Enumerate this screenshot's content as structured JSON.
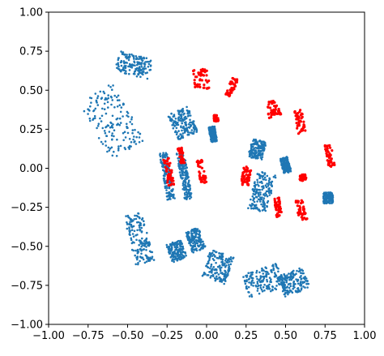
{
  "chart_data": {
    "type": "scatter",
    "title": "",
    "xlabel": "",
    "ylabel": "",
    "xlim": [
      -1.0,
      1.0
    ],
    "ylim": [
      -1.0,
      1.0
    ],
    "grid": false,
    "legend": "none",
    "xticks": [
      {
        "value": -1.0,
        "label": "−1.00"
      },
      {
        "value": -0.75,
        "label": "−0.75"
      },
      {
        "value": -0.5,
        "label": "−0.50"
      },
      {
        "value": -0.25,
        "label": "−0.25"
      },
      {
        "value": 0.0,
        "label": "0.00"
      },
      {
        "value": 0.25,
        "label": "0.25"
      },
      {
        "value": 0.5,
        "label": "0.50"
      },
      {
        "value": 0.75,
        "label": "0.75"
      },
      {
        "value": 1.0,
        "label": "1.00"
      }
    ],
    "yticks": [
      {
        "value": 1.0,
        "label": "1.00"
      },
      {
        "value": 0.75,
        "label": "0.75"
      },
      {
        "value": 0.5,
        "label": "0.50"
      },
      {
        "value": 0.25,
        "label": "0.25"
      },
      {
        "value": 0.0,
        "label": "0.00"
      },
      {
        "value": -0.25,
        "label": "−0.25"
      },
      {
        "value": -0.5,
        "label": "−0.50"
      },
      {
        "value": -0.75,
        "label": "−0.75"
      },
      {
        "value": -1.0,
        "label": "−1.00"
      }
    ],
    "series": [
      {
        "color": "#1f77b4",
        "clusters": [
          {
            "cx": -0.46,
            "cy": 0.66,
            "w": 0.22,
            "h": 0.13,
            "angle": -15
          },
          {
            "cx": -0.6,
            "cy": 0.3,
            "w": 0.25,
            "h": 0.42,
            "angle": 30
          },
          {
            "cx": -0.15,
            "cy": 0.29,
            "w": 0.14,
            "h": 0.18,
            "angle": 25
          },
          {
            "cx": 0.04,
            "cy": 0.22,
            "w": 0.04,
            "h": 0.1,
            "angle": 10
          },
          {
            "cx": -0.43,
            "cy": -0.45,
            "w": 0.12,
            "h": 0.32,
            "angle": 15
          },
          {
            "cx": -0.19,
            "cy": -0.53,
            "w": 0.1,
            "h": 0.12,
            "angle": 20
          },
          {
            "cx": -0.07,
            "cy": -0.46,
            "w": 0.09,
            "h": 0.14,
            "angle": 20
          },
          {
            "cx": 0.07,
            "cy": -0.63,
            "w": 0.16,
            "h": 0.18,
            "angle": -20
          },
          {
            "cx": 0.36,
            "cy": -0.72,
            "w": 0.24,
            "h": 0.16,
            "angle": 20
          },
          {
            "cx": 0.55,
            "cy": -0.73,
            "w": 0.18,
            "h": 0.14,
            "angle": 20
          },
          {
            "cx": 0.32,
            "cy": 0.12,
            "w": 0.09,
            "h": 0.12,
            "angle": -15
          },
          {
            "cx": 0.5,
            "cy": 0.02,
            "w": 0.05,
            "h": 0.1,
            "angle": 15
          },
          {
            "cx": 0.77,
            "cy": -0.19,
            "w": 0.06,
            "h": 0.07,
            "angle": 0
          },
          {
            "cx": 0.35,
            "cy": -0.15,
            "w": 0.12,
            "h": 0.25,
            "angle": -15
          },
          {
            "cx": -0.25,
            "cy": -0.05,
            "w": 0.05,
            "h": 0.3,
            "angle": 10
          },
          {
            "cx": -0.14,
            "cy": -0.05,
            "w": 0.05,
            "h": 0.3,
            "angle": 10
          }
        ]
      },
      {
        "color": "#ff0000",
        "clusters": [
          {
            "cx": -0.03,
            "cy": 0.57,
            "w": 0.1,
            "h": 0.13,
            "angle": 5
          },
          {
            "cx": 0.16,
            "cy": 0.52,
            "w": 0.04,
            "h": 0.13,
            "angle": -20
          },
          {
            "cx": 0.42,
            "cy": 0.38,
            "w": 0.08,
            "h": 0.1,
            "angle": 15
          },
          {
            "cx": 0.59,
            "cy": 0.3,
            "w": 0.05,
            "h": 0.15,
            "angle": 10
          },
          {
            "cx": 0.78,
            "cy": 0.08,
            "w": 0.04,
            "h": 0.14,
            "angle": 10
          },
          {
            "cx": 0.61,
            "cy": -0.06,
            "w": 0.04,
            "h": 0.04,
            "angle": 0
          },
          {
            "cx": 0.6,
            "cy": -0.27,
            "w": 0.05,
            "h": 0.14,
            "angle": 15
          },
          {
            "cx": 0.45,
            "cy": -0.25,
            "w": 0.04,
            "h": 0.12,
            "angle": 10
          },
          {
            "cx": 0.25,
            "cy": -0.05,
            "w": 0.05,
            "h": 0.12,
            "angle": -10
          },
          {
            "cx": -0.03,
            "cy": -0.02,
            "w": 0.04,
            "h": 0.15,
            "angle": 10
          },
          {
            "cx": -0.24,
            "cy": -0.02,
            "w": 0.04,
            "h": 0.18,
            "angle": 10
          },
          {
            "cx": -0.16,
            "cy": 0.08,
            "w": 0.03,
            "h": 0.1,
            "angle": 10
          },
          {
            "cx": 0.06,
            "cy": 0.32,
            "w": 0.03,
            "h": 0.04,
            "angle": 0
          }
        ]
      }
    ]
  }
}
